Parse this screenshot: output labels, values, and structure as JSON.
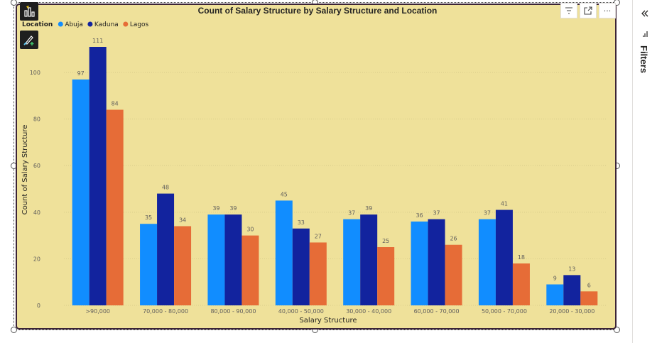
{
  "filters_pane": {
    "label": "Filters",
    "collapse_icon": "chevrons-left-icon",
    "filter_icon": "filter-bars-icon"
  },
  "visual_header": {
    "icons": [
      "filter-icon",
      "focus-mode-icon",
      "more-options-icon"
    ],
    "more_label": "···"
  },
  "side_tools": [
    "quick-insights-icon",
    "format-paintbrush-icon"
  ],
  "colors": {
    "background": "#efe19a",
    "border": "#3b2436",
    "gridline": "#d9cd8a"
  },
  "chart_data": {
    "type": "bar",
    "title": "Count of Salary Structure by Salary Structure and Location",
    "xlabel": "Salary Structure",
    "ylabel": "Count of Salary Structure",
    "legend_title": "Location",
    "legend_position": "top-left",
    "grid": true,
    "ylim": [
      0,
      111
    ],
    "yticks": [
      0,
      20,
      40,
      60,
      80,
      100
    ],
    "categories": [
      ">90,000",
      "70,000 - 80,000",
      "80,000 - 90,000",
      "40,000 - 50,000",
      "30,000 - 40,000",
      "60,000 - 70,000",
      "50,000 - 70,000",
      "20,000 - 30,000"
    ],
    "series": [
      {
        "name": "Abuja",
        "color": "#118dff",
        "values": [
          97,
          35,
          39,
          45,
          37,
          36,
          37,
          9
        ]
      },
      {
        "name": "Kaduna",
        "color": "#12239e",
        "values": [
          111,
          48,
          39,
          33,
          39,
          37,
          41,
          13
        ]
      },
      {
        "name": "Lagos",
        "color": "#e66c37",
        "values": [
          84,
          34,
          30,
          27,
          25,
          26,
          18,
          6
        ]
      }
    ]
  }
}
